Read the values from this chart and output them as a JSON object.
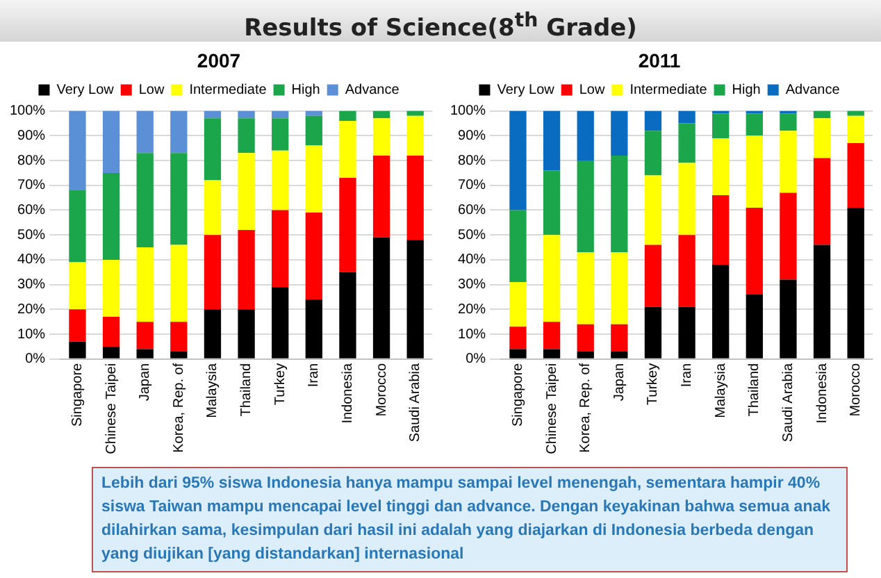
{
  "chart_data": [
    {
      "type": "bar",
      "title": "2007",
      "stacked": true,
      "legend": "top",
      "grid": "y",
      "annotations": [
        "Results of Science(8$^{th}$ Grade)",
        "Lebih dari 95% siswa Indonesia hanya mampu sampai level menengah, sementara hampir 40% siswa Taiwan mampu mencapai level tinggi dan advance. Dengan keyakinan bahwa semua anak dilahirkan sama, kesimpulan dari hasil ini adalah yang diajarkan di Indonesia berbeda dengan yang diujikan [yang distandarkan] internasional"
      ],
      "categories": [
        "Singapore",
        "Chinese Taipei",
        "Japan",
        "Korea, Rep. of",
        "Malaysia",
        "Thailand",
        "Turkey",
        "Iran",
        "Indonesia",
        "Morocco",
        "Saudi Arabia"
      ],
      "ylim": [
        0,
        100
      ],
      "yticks": [
        {
          "value": 0,
          "label": "0%"
        },
        {
          "value": 10,
          "label": "10%"
        },
        {
          "value": 20,
          "label": "20%"
        },
        {
          "value": 30,
          "label": "30%"
        },
        {
          "value": 40,
          "label": "40%"
        },
        {
          "value": 50,
          "label": "50%"
        },
        {
          "value": 60,
          "label": "60%"
        },
        {
          "value": 70,
          "label": "70%"
        },
        {
          "value": 80,
          "label": "80%"
        },
        {
          "value": 90,
          "label": "90%"
        },
        {
          "value": 100,
          "label": "100%"
        }
      ],
      "series": [
        {
          "name": "Very Low",
          "color": "#000000",
          "values": [
            7,
            5,
            4,
            3,
            20,
            20,
            29,
            24,
            35,
            49,
            48
          ]
        },
        {
          "name": "Low",
          "color": "#ff0000",
          "values": [
            13,
            12,
            11,
            12,
            30,
            32,
            31,
            35,
            38,
            33,
            34
          ]
        },
        {
          "name": "Intermediate",
          "color": "#ffff00",
          "values": [
            19,
            23,
            30,
            31,
            22,
            31,
            24,
            27,
            23,
            15,
            16
          ]
        },
        {
          "name": "High",
          "color": "#1ca64c",
          "values": [
            29,
            35,
            38,
            37,
            25,
            14,
            13,
            12,
            4,
            3,
            2
          ]
        },
        {
          "name": "Advance",
          "color": "#5b8fd6",
          "values": [
            32,
            25,
            17,
            17,
            3,
            3,
            3,
            2,
            0,
            0,
            0
          ]
        }
      ]
    },
    {
      "type": "bar",
      "title": "2011",
      "stacked": true,
      "legend": "top",
      "grid": "y",
      "categories": [
        "Singapore",
        "Chinese Taipei",
        "Korea, Rep. of",
        "Japan",
        "Turkey",
        "Iran",
        "Malaysia",
        "Thailand",
        "Saudi Arabia",
        "Indonesia",
        "Morocco"
      ],
      "ylim": [
        0,
        100
      ],
      "yticks": [
        {
          "value": 0,
          "label": "0%"
        },
        {
          "value": 10,
          "label": "10%"
        },
        {
          "value": 20,
          "label": "20%"
        },
        {
          "value": 30,
          "label": "30%"
        },
        {
          "value": 40,
          "label": "40%"
        },
        {
          "value": 50,
          "label": "50%"
        },
        {
          "value": 60,
          "label": "60%"
        },
        {
          "value": 70,
          "label": "70%"
        },
        {
          "value": 80,
          "label": "80%"
        },
        {
          "value": 90,
          "label": "90%"
        },
        {
          "value": 100,
          "label": "100%"
        }
      ],
      "series": [
        {
          "name": "Very Low",
          "color": "#000000",
          "values": [
            4,
            4,
            3,
            3,
            21,
            21,
            38,
            26,
            32,
            46,
            61
          ]
        },
        {
          "name": "Low",
          "color": "#ff0000",
          "values": [
            9,
            11,
            11,
            11,
            25,
            29,
            28,
            35,
            35,
            35,
            26
          ]
        },
        {
          "name": "Intermediate",
          "color": "#ffff00",
          "values": [
            18,
            35,
            29,
            29,
            28,
            29,
            23,
            29,
            25,
            16,
            11
          ]
        },
        {
          "name": "High",
          "color": "#1ca64c",
          "values": [
            29,
            26,
            37,
            39,
            18,
            16,
            10,
            9,
            7,
            3,
            2
          ]
        },
        {
          "name": "Advance",
          "color": "#0a6cc0",
          "values": [
            40,
            24,
            20,
            18,
            8,
            5,
            1,
            1,
            1,
            0,
            0
          ]
        }
      ]
    }
  ]
}
